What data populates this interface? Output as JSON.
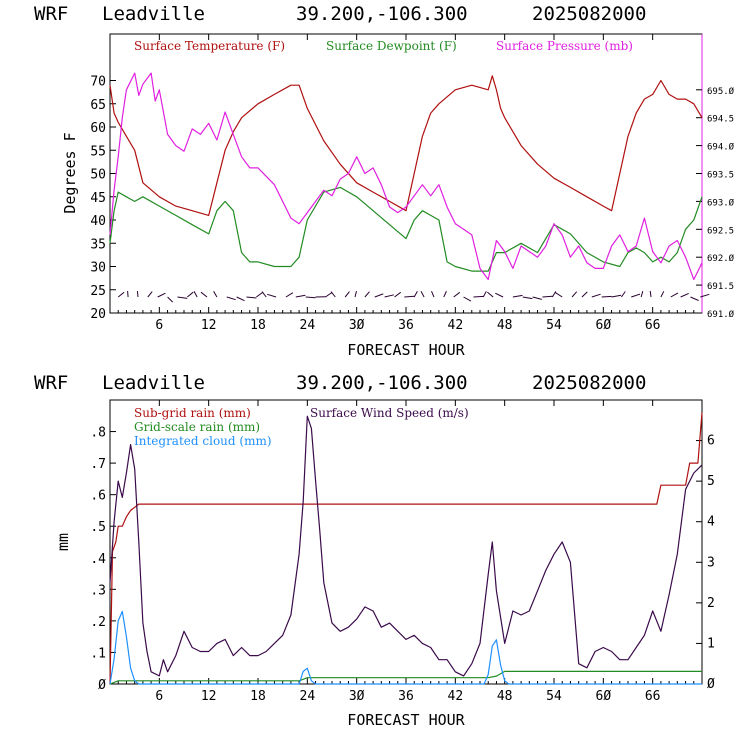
{
  "header": {
    "model": "WRF",
    "station": "Leadville",
    "coords": "39.200,-106.300",
    "date": "2025082000"
  },
  "colors": {
    "temperature": "#b01010",
    "dewpoint": "#228b22",
    "pressure": "#e020e0",
    "subgrid": "#b01010",
    "gridscale": "#228b22",
    "cloud": "#1e90ff",
    "wind": "#3a0a4a"
  },
  "chart_data": [
    {
      "type": "line",
      "xlabel": "FORECAST HOUR",
      "ylabel": "Degrees F",
      "xlim": [
        0,
        72
      ],
      "ylim": [
        20,
        80
      ],
      "y2lim": [
        691.0,
        696.0
      ],
      "xticks": [
        6,
        12,
        18,
        24,
        30,
        36,
        42,
        48,
        54,
        60,
        66
      ],
      "xtick_labels": [
        "6",
        "12",
        "18",
        "24",
        "3Ø",
        "36",
        "42",
        "48",
        "54",
        "6Ø",
        "66"
      ],
      "yticks": [
        20,
        25,
        30,
        35,
        40,
        45,
        50,
        55,
        60,
        65,
        70
      ],
      "y2ticks": [
        691.0,
        691.5,
        692.0,
        692.5,
        693.0,
        693.5,
        694.0,
        694.5,
        695.0
      ],
      "y2tick_labels": [
        "691.Ø",
        "691.5",
        "692.Ø",
        "692.5",
        "693.Ø",
        "693.5",
        "694.Ø",
        "694.5",
        "695.Ø"
      ],
      "legend": [
        "Surface Temperature (F)",
        "Surface Dewpoint (F)",
        "Surface Pressure (mb)"
      ],
      "series": [
        {
          "name": "Surface Temperature (F)",
          "axis": "left",
          "x": [
            0,
            0.5,
            1,
            2,
            3,
            4,
            6,
            8,
            10,
            12,
            13,
            14,
            15,
            16,
            18,
            20,
            22,
            23,
            24,
            26,
            28,
            30,
            32,
            34,
            36,
            37,
            38,
            39,
            40,
            42,
            44,
            46,
            46.5,
            47,
            47.5,
            48,
            50,
            52,
            54,
            56,
            58,
            60,
            61,
            62,
            63,
            64,
            65,
            66,
            67,
            68,
            69,
            70,
            71,
            72
          ],
          "y": [
            69,
            63,
            61,
            58,
            55,
            48,
            45,
            43,
            42,
            41,
            48,
            55,
            59,
            62,
            65,
            67,
            69,
            69,
            64,
            57,
            52,
            48,
            46,
            44,
            42,
            50,
            58,
            63,
            65,
            68,
            69,
            68,
            71,
            68,
            64,
            62,
            56,
            52,
            49,
            47,
            45,
            43,
            42,
            50,
            58,
            63,
            66,
            67,
            70,
            67,
            66,
            66,
            65,
            62
          ]
        },
        {
          "name": "Surface Dewpoint (F)",
          "axis": "left",
          "x": [
            0,
            0.5,
            1,
            2,
            3,
            4,
            6,
            8,
            10,
            12,
            13,
            14,
            15,
            16,
            17,
            18,
            20,
            22,
            23,
            24,
            26,
            28,
            30,
            32,
            34,
            36,
            37,
            38,
            39,
            40,
            41,
            42,
            44,
            46,
            47,
            48,
            50,
            52,
            53,
            54,
            56,
            58,
            60,
            62,
            63,
            64,
            65,
            66,
            67,
            68,
            69,
            70,
            71,
            72
          ],
          "y": [
            35,
            42,
            46,
            45,
            44,
            45,
            43,
            41,
            39,
            37,
            42,
            44,
            42,
            33,
            31,
            31,
            30,
            30,
            32,
            40,
            46,
            47,
            45,
            42,
            39,
            36,
            40,
            42,
            41,
            40,
            31,
            30,
            29,
            29,
            33,
            33,
            35,
            33,
            36,
            39,
            37,
            33,
            31,
            30,
            33,
            34,
            33,
            31,
            32,
            31,
            33,
            38,
            40,
            45
          ]
        },
        {
          "name": "Surface Pressure (mb)",
          "axis": "right",
          "x": [
            0,
            0.5,
            1,
            1.5,
            2,
            3,
            3.5,
            4,
            5,
            5.5,
            6,
            7,
            8,
            9,
            10,
            11,
            12,
            13,
            14,
            15,
            16,
            17,
            18,
            20,
            22,
            23,
            24,
            25,
            26,
            27,
            28,
            29,
            30,
            31,
            32,
            33,
            34,
            35,
            36,
            37,
            38,
            39,
            40,
            41,
            42,
            43,
            44,
            45,
            46,
            47,
            48,
            49,
            50,
            51,
            52,
            53,
            54,
            55,
            56,
            57,
            58,
            59,
            60,
            61,
            62,
            63,
            64,
            65,
            66,
            67,
            68,
            69,
            70,
            71,
            72
          ],
          "y": [
            692.4,
            693.2,
            693.8,
            694.5,
            695.0,
            695.3,
            694.9,
            695.1,
            695.3,
            694.8,
            695.0,
            694.2,
            694.0,
            693.9,
            694.3,
            694.2,
            694.4,
            694.1,
            694.6,
            694.2,
            693.8,
            693.6,
            693.6,
            693.3,
            692.7,
            692.6,
            692.8,
            693.0,
            693.2,
            693.1,
            693.4,
            693.5,
            693.8,
            693.5,
            693.6,
            693.3,
            692.9,
            692.8,
            692.9,
            693.1,
            693.3,
            693.1,
            693.3,
            692.9,
            692.6,
            692.5,
            692.4,
            691.8,
            691.6,
            692.3,
            692.1,
            691.8,
            692.2,
            692.1,
            692.0,
            692.2,
            692.6,
            692.4,
            692.0,
            692.2,
            691.9,
            691.8,
            691.8,
            692.2,
            692.4,
            692.1,
            692.2,
            692.7,
            692.1,
            691.9,
            692.2,
            692.3,
            692.0,
            691.6,
            691.9
          ]
        }
      ]
    },
    {
      "type": "line",
      "xlabel": "FORECAST HOUR",
      "ylabel": "mm",
      "xlim": [
        0,
        72
      ],
      "ylim": [
        0,
        0.9
      ],
      "y2lim": [
        0,
        7
      ],
      "xticks": [
        6,
        12,
        18,
        24,
        30,
        36,
        42,
        48,
        54,
        60,
        66
      ],
      "xtick_labels": [
        "6",
        "12",
        "18",
        "24",
        "3Ø",
        "36",
        "42",
        "48",
        "54",
        "6Ø",
        "66"
      ],
      "yticks": [
        0,
        0.1,
        0.2,
        0.3,
        0.4,
        0.5,
        0.6,
        0.7,
        0.8
      ],
      "ytick_labels": [
        "Ø",
        ".1",
        ".2",
        ".3",
        ".4",
        ".5",
        ".6",
        ".7",
        ".8"
      ],
      "y2ticks": [
        0,
        1,
        2,
        3,
        4,
        5,
        6
      ],
      "y2tick_labels": [
        "Ø",
        "1",
        "2",
        "3",
        "4",
        "5",
        "6"
      ],
      "legend": [
        "Sub-grid rain (mm)",
        "Surface Wind Speed (m/s)",
        "Grid-scale rain (mm)",
        "Integrated cloud (mm)"
      ],
      "series": [
        {
          "name": "Sub-grid rain (mm)",
          "axis": "left",
          "x": [
            0,
            0.3,
            0.7,
            1,
            1.5,
            2,
            2.5,
            3,
            3.5,
            66.5,
            67,
            70,
            70.5,
            71.5,
            72
          ],
          "y": [
            0,
            0.42,
            0.45,
            0.5,
            0.5,
            0.53,
            0.55,
            0.56,
            0.57,
            0.57,
            0.63,
            0.63,
            0.7,
            0.7,
            0.86
          ]
        },
        {
          "name": "Surface Wind Speed (m/s)",
          "axis": "right",
          "x": [
            0,
            0.5,
            1,
            1.5,
            2,
            2.5,
            3,
            3.5,
            4,
            4.5,
            5,
            6,
            6.5,
            7,
            8,
            9,
            10,
            11,
            12,
            13,
            14,
            15,
            16,
            17,
            18,
            19,
            20,
            21,
            22,
            23,
            23.5,
            24,
            24.5,
            25,
            25.5,
            26,
            27,
            28,
            29,
            30,
            31,
            32,
            33,
            34,
            35,
            36,
            37,
            38,
            39,
            40,
            41,
            42,
            43,
            44,
            45,
            46,
            46.5,
            47,
            48,
            49,
            50,
            51,
            52,
            53,
            54,
            55,
            56,
            57,
            58,
            59,
            60,
            61,
            62,
            63,
            64,
            65,
            66,
            67,
            68,
            69,
            70,
            71,
            72
          ],
          "y": [
            2.5,
            4.0,
            5.0,
            4.6,
            5.2,
            5.9,
            5.3,
            3.5,
            1.5,
            0.8,
            0.3,
            0.2,
            0.6,
            0.3,
            0.7,
            1.3,
            0.9,
            0.8,
            0.8,
            1.0,
            1.1,
            0.7,
            0.9,
            0.7,
            0.7,
            0.8,
            1.0,
            1.2,
            1.7,
            3.2,
            4.5,
            6.6,
            6.3,
            5.0,
            3.8,
            2.5,
            1.5,
            1.3,
            1.4,
            1.6,
            1.9,
            1.8,
            1.4,
            1.5,
            1.3,
            1.1,
            1.2,
            1.0,
            0.9,
            0.6,
            0.6,
            0.3,
            0.2,
            0.5,
            1.0,
            2.7,
            3.5,
            2.3,
            1.0,
            1.8,
            1.7,
            1.8,
            2.3,
            2.8,
            3.2,
            3.5,
            3.0,
            0.5,
            0.4,
            0.8,
            0.9,
            0.8,
            0.6,
            0.6,
            0.9,
            1.2,
            1.8,
            1.3,
            2.2,
            3.2,
            4.8,
            5.2,
            5.4
          ]
        },
        {
          "name": "Grid-scale rain (mm)",
          "axis": "left",
          "x": [
            0,
            0.5,
            1,
            23,
            23.5,
            24,
            46,
            47,
            48,
            72
          ],
          "y": [
            0,
            0.005,
            0.01,
            0.01,
            0.015,
            0.02,
            0.02,
            0.025,
            0.04,
            0.04
          ]
        },
        {
          "name": "Integrated cloud (mm)",
          "axis": "left",
          "x": [
            0,
            0.5,
            1,
            1.5,
            2,
            2.5,
            3,
            3.5,
            23,
            23.5,
            24,
            24.5,
            25,
            45.5,
            46,
            46.5,
            47,
            47.5,
            48,
            48.5,
            72
          ],
          "y": [
            0,
            0.08,
            0.2,
            0.23,
            0.15,
            0.05,
            0.01,
            0,
            0,
            0.04,
            0.05,
            0.01,
            0,
            0,
            0.03,
            0.12,
            0.14,
            0.06,
            0.01,
            0,
            0
          ]
        }
      ]
    }
  ]
}
